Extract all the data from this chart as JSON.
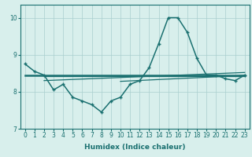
{
  "xlabel": "Humidex (Indice chaleur)",
  "background_color": "#d8efec",
  "line_color": "#1a7070",
  "grid_color": "#aacece",
  "xlim": [
    -0.5,
    23.5
  ],
  "ylim": [
    7.0,
    10.35
  ],
  "yticks": [
    7,
    8,
    9,
    10
  ],
  "xticks": [
    0,
    1,
    2,
    3,
    4,
    5,
    6,
    7,
    8,
    9,
    10,
    11,
    12,
    13,
    14,
    15,
    16,
    17,
    18,
    19,
    20,
    21,
    22,
    23
  ],
  "main_x": [
    0,
    1,
    2,
    3,
    4,
    5,
    6,
    7,
    8,
    9,
    10,
    11,
    12,
    13,
    14,
    15,
    16,
    17,
    18,
    19,
    20,
    21,
    22,
    23
  ],
  "main_y": [
    8.75,
    8.55,
    8.45,
    8.05,
    8.2,
    7.85,
    7.75,
    7.65,
    7.45,
    7.75,
    7.85,
    8.2,
    8.3,
    8.65,
    9.3,
    10.0,
    10.0,
    9.6,
    8.9,
    8.45,
    8.45,
    8.35,
    8.3,
    8.45
  ],
  "flat_lines": [
    {
      "x": [
        0,
        23
      ],
      "y": [
        8.45,
        8.45
      ],
      "lw": 1.8
    },
    {
      "x": [
        2,
        23
      ],
      "y": [
        8.42,
        8.42
      ],
      "lw": 0.9
    },
    {
      "x": [
        2,
        23
      ],
      "y": [
        8.35,
        8.55
      ],
      "lw": 0.9
    },
    {
      "x": [
        10,
        23
      ],
      "y": [
        8.28,
        8.42
      ],
      "lw": 0.9
    }
  ]
}
